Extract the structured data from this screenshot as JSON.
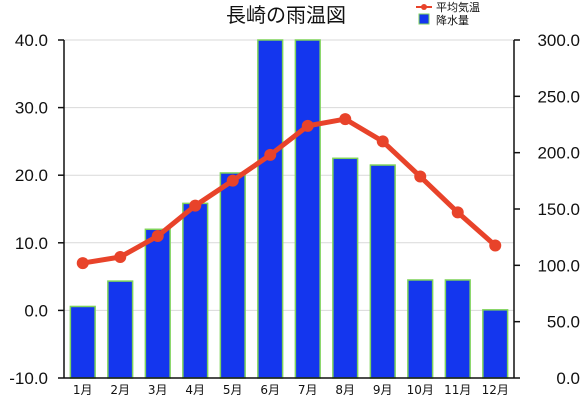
{
  "chart_data": {
    "type": "bar",
    "title": "長崎の雨温図",
    "categories": [
      "1月",
      "2月",
      "3月",
      "4月",
      "5月",
      "6月",
      "7月",
      "8月",
      "9月",
      "10月",
      "11月",
      "12月"
    ],
    "series": [
      {
        "name": "降水量",
        "type": "bar",
        "axis": "right",
        "values": [
          63.5,
          86,
          132,
          155,
          182,
          300,
          300,
          195,
          189,
          87,
          87,
          60.5
        ]
      },
      {
        "name": "平均気温",
        "type": "line",
        "axis": "left",
        "values": [
          7.0,
          7.9,
          11.0,
          15.5,
          19.2,
          23.0,
          27.3,
          28.3,
          25.0,
          19.8,
          14.5,
          9.6
        ]
      }
    ],
    "ylim_left": [
      -10,
      40
    ],
    "yticks_left": [
      "-10.0",
      "0.0",
      "10.0",
      "20.0",
      "30.0",
      "40.0"
    ],
    "ylim_right": [
      0,
      300
    ],
    "yticks_right": [
      "0.0",
      "50.0",
      "100.0",
      "150.0",
      "200.0",
      "250.0",
      "300.0"
    ],
    "grid": true,
    "legend_position": "top-right",
    "colors": {
      "bar_fill": "#1436ee",
      "bar_edge": "#7fd35a",
      "line": "#e8432a"
    }
  }
}
